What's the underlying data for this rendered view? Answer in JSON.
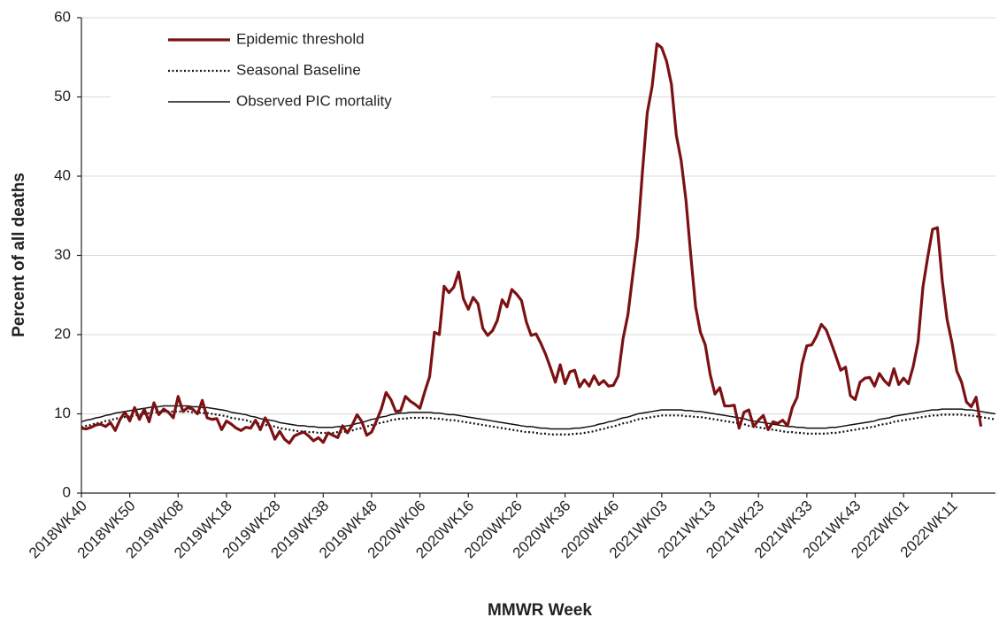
{
  "chart_data": {
    "type": "line",
    "x_label": "MMWR Week",
    "y_label": "Percent of all deaths",
    "ylim": [
      0,
      60
    ],
    "yticks": [
      0,
      10,
      20,
      30,
      40,
      50,
      60
    ],
    "grid": true,
    "legend": "upper left",
    "categories": [
      "2018WK40",
      null,
      null,
      null,
      null,
      null,
      null,
      null,
      null,
      null,
      "2018WK50",
      null,
      null,
      null,
      null,
      null,
      null,
      null,
      null,
      null,
      "2019WK08",
      null,
      null,
      null,
      null,
      null,
      null,
      null,
      null,
      null,
      "2019WK18",
      null,
      null,
      null,
      null,
      null,
      null,
      null,
      null,
      null,
      "2019WK28",
      null,
      null,
      null,
      null,
      null,
      null,
      null,
      null,
      null,
      "2019WK38",
      null,
      null,
      null,
      null,
      null,
      null,
      null,
      null,
      null,
      "2019WK48",
      null,
      null,
      null,
      null,
      null,
      null,
      null,
      null,
      null,
      "2020WK06",
      null,
      null,
      null,
      null,
      null,
      null,
      null,
      null,
      null,
      "2020WK16",
      null,
      null,
      null,
      null,
      null,
      null,
      null,
      null,
      null,
      "2020WK26",
      null,
      null,
      null,
      null,
      null,
      null,
      null,
      null,
      null,
      "2020WK36",
      null,
      null,
      null,
      null,
      null,
      null,
      null,
      null,
      null,
      "2020WK46",
      null,
      null,
      null,
      null,
      null,
      null,
      null,
      null,
      null,
      "2021WK03",
      null,
      null,
      null,
      null,
      null,
      null,
      null,
      null,
      null,
      "2021WK13",
      null,
      null,
      null,
      null,
      null,
      null,
      null,
      null,
      null,
      "2021WK23",
      null,
      null,
      null,
      null,
      null,
      null,
      null,
      null,
      null,
      "2021WK33",
      null,
      null,
      null,
      null,
      null,
      null,
      null,
      null,
      null,
      "2021WK43",
      null,
      null,
      null,
      null,
      null,
      null,
      null,
      null,
      null,
      "2022WK01",
      null,
      null,
      null,
      null,
      null,
      null,
      null,
      null,
      null,
      "2022WK11",
      null,
      null,
      null,
      null,
      null,
      null,
      null,
      null,
      null
    ],
    "series": [
      {
        "name": "Epidemic threshold",
        "color": "#7b1113",
        "style": "thick",
        "values": [
          8.2,
          8.1,
          8.3,
          8.6,
          8.7,
          8.4,
          8.9,
          7.9,
          9.3,
          10.2,
          9.1,
          10.8,
          9.3,
          10.6,
          9.0,
          11.4,
          9.9,
          10.6,
          10.2,
          9.5,
          12.2,
          10.3,
          10.8,
          10.6,
          10.0,
          11.7,
          9.5,
          9.3,
          9.4,
          8.0,
          9.1,
          8.7,
          8.2,
          7.9,
          8.3,
          8.2,
          9.2,
          8.0,
          9.5,
          8.4,
          6.8,
          7.8,
          6.8,
          6.3,
          7.2,
          7.5,
          7.7,
          7.2,
          6.6,
          7.0,
          6.4,
          7.6,
          7.3,
          7.0,
          8.5,
          7.6,
          8.6,
          9.9,
          9.0,
          7.3,
          7.7,
          9.1,
          10.6,
          12.7,
          11.8,
          10.3,
          10.4,
          12.2,
          11.6,
          11.2,
          10.7,
          12.8,
          14.7,
          20.3,
          20.0,
          26.1,
          25.3,
          26.0,
          27.9,
          24.5,
          23.2,
          24.7,
          23.9,
          20.8,
          19.9,
          20.5,
          21.8,
          24.4,
          23.5,
          25.7,
          25.1,
          24.3,
          21.6,
          19.9,
          20.1,
          18.9,
          17.5,
          15.8,
          14.0,
          16.2,
          13.8,
          15.3,
          15.5,
          13.4,
          14.3,
          13.5,
          14.8,
          13.7,
          14.2,
          13.5,
          13.6,
          14.8,
          19.5,
          22.5,
          27.5,
          32.3,
          40.5,
          48,
          51.3,
          56.7,
          56.2,
          54.5,
          51.6,
          45.2,
          42,
          37,
          30,
          23.5,
          20.3,
          18.7,
          15,
          12.5,
          13.3,
          11.0,
          11.0,
          11.1,
          8.2,
          10.2,
          10.5,
          8.4,
          9.2,
          9.8,
          8.0,
          9.0,
          8.8,
          9.2,
          8.5,
          10.8,
          12.1,
          16.3,
          18.6,
          18.7,
          19.8,
          21.3,
          20.6,
          19.0,
          17.3,
          15.5,
          15.9,
          12.3,
          11.8,
          14.0,
          14.5,
          14.6,
          13.5,
          15.1,
          14.2,
          13.6,
          15.7,
          13.7,
          14.5,
          13.8,
          16.0,
          19.1,
          26.0,
          29.8,
          33.3,
          33.5,
          26.8,
          21.9,
          19.0,
          15.4,
          14.0,
          11.5,
          10.9,
          12.1,
          8.4,
          null,
          null,
          null
        ]
      },
      {
        "name": "Seasonal Baseline",
        "color": "#111111",
        "style": "dotted",
        "values": [
          8.3,
          8.5,
          8.6,
          8.8,
          8.9,
          9.1,
          9.2,
          9.4,
          9.5,
          9.6,
          9.7,
          9.8,
          9.9,
          10.0,
          10.1,
          10.2,
          10.2,
          10.3,
          10.3,
          10.3,
          10.3,
          10.3,
          10.3,
          10.2,
          10.2,
          10.1,
          10.1,
          10.0,
          9.9,
          9.8,
          9.7,
          9.5,
          9.4,
          9.3,
          9.2,
          9.0,
          8.9,
          8.7,
          8.6,
          8.5,
          8.4,
          8.2,
          8.1,
          8.0,
          7.9,
          7.8,
          7.8,
          7.7,
          7.7,
          7.6,
          7.6,
          7.6,
          7.6,
          7.7,
          7.7,
          7.8,
          7.9,
          8.1,
          8.2,
          8.4,
          8.6,
          8.7,
          8.9,
          9.0,
          9.2,
          9.3,
          9.4,
          9.4,
          9.5,
          9.5,
          9.5,
          9.5,
          9.5,
          9.4,
          9.4,
          9.3,
          9.2,
          9.2,
          9.1,
          9.0,
          8.9,
          8.8,
          8.7,
          8.6,
          8.5,
          8.4,
          8.3,
          8.2,
          8.1,
          8.0,
          7.9,
          7.8,
          7.7,
          7.7,
          7.6,
          7.5,
          7.5,
          7.4,
          7.4,
          7.4,
          7.4,
          7.4,
          7.5,
          7.5,
          7.6,
          7.7,
          7.8,
          8.0,
          8.1,
          8.3,
          8.4,
          8.6,
          8.8,
          8.9,
          9.1,
          9.3,
          9.4,
          9.5,
          9.6,
          9.7,
          9.8,
          9.8,
          9.8,
          9.8,
          9.8,
          9.7,
          9.7,
          9.6,
          9.6,
          9.5,
          9.4,
          9.3,
          9.2,
          9.1,
          9.0,
          8.9,
          8.8,
          8.7,
          8.5,
          8.4,
          8.3,
          8.2,
          8.1,
          8.0,
          7.9,
          7.8,
          7.7,
          7.7,
          7.6,
          7.6,
          7.5,
          7.5,
          7.5,
          7.5,
          7.5,
          7.6,
          7.6,
          7.7,
          7.8,
          7.9,
          8.0,
          8.1,
          8.2,
          8.3,
          8.4,
          8.6,
          8.7,
          8.8,
          9.0,
          9.1,
          9.2,
          9.3,
          9.4,
          9.5,
          9.6,
          9.7,
          9.8,
          9.8,
          9.9,
          9.9,
          9.9,
          9.9,
          9.9,
          9.8,
          9.8,
          9.7,
          9.6,
          9.5,
          9.4,
          9.3
        ]
      },
      {
        "name": "Observed PIC mortality",
        "color": "#111111",
        "style": "thin",
        "values": [
          9.0,
          9.2,
          9.3,
          9.5,
          9.6,
          9.8,
          9.9,
          10.1,
          10.2,
          10.3,
          10.4,
          10.5,
          10.6,
          10.7,
          10.8,
          10.9,
          10.9,
          11.0,
          11.0,
          11.0,
          11.0,
          11.0,
          11.0,
          10.9,
          10.9,
          10.8,
          10.8,
          10.7,
          10.6,
          10.5,
          10.4,
          10.2,
          10.1,
          10.0,
          9.9,
          9.7,
          9.6,
          9.4,
          9.3,
          9.2,
          9.1,
          8.9,
          8.8,
          8.7,
          8.6,
          8.5,
          8.5,
          8.4,
          8.4,
          8.3,
          8.3,
          8.3,
          8.3,
          8.4,
          8.4,
          8.5,
          8.6,
          8.8,
          8.9,
          9.1,
          9.3,
          9.4,
          9.6,
          9.7,
          9.9,
          10.0,
          10.1,
          10.1,
          10.2,
          10.2,
          10.2,
          10.2,
          10.2,
          10.1,
          10.1,
          10.0,
          9.9,
          9.9,
          9.8,
          9.7,
          9.6,
          9.5,
          9.4,
          9.3,
          9.2,
          9.1,
          9.0,
          8.9,
          8.8,
          8.7,
          8.6,
          8.5,
          8.4,
          8.4,
          8.3,
          8.2,
          8.2,
          8.1,
          8.1,
          8.1,
          8.1,
          8.1,
          8.2,
          8.2,
          8.3,
          8.4,
          8.5,
          8.7,
          8.8,
          9.0,
          9.1,
          9.3,
          9.5,
          9.6,
          9.8,
          10.0,
          10.1,
          10.2,
          10.3,
          10.4,
          10.5,
          10.5,
          10.5,
          10.5,
          10.5,
          10.4,
          10.4,
          10.3,
          10.3,
          10.2,
          10.1,
          10.0,
          9.9,
          9.8,
          9.7,
          9.6,
          9.5,
          9.4,
          9.2,
          9.1,
          9.0,
          8.9,
          8.8,
          8.7,
          8.6,
          8.5,
          8.4,
          8.4,
          8.3,
          8.3,
          8.2,
          8.2,
          8.2,
          8.2,
          8.2,
          8.3,
          8.3,
          8.4,
          8.5,
          8.6,
          8.7,
          8.8,
          8.9,
          9.0,
          9.1,
          9.3,
          9.4,
          9.5,
          9.7,
          9.8,
          9.9,
          10.0,
          10.1,
          10.2,
          10.3,
          10.4,
          10.5,
          10.5,
          10.6,
          10.6,
          10.6,
          10.6,
          10.6,
          10.5,
          10.5,
          10.4,
          10.3,
          10.2,
          10.1,
          10.0
        ]
      }
    ]
  }
}
